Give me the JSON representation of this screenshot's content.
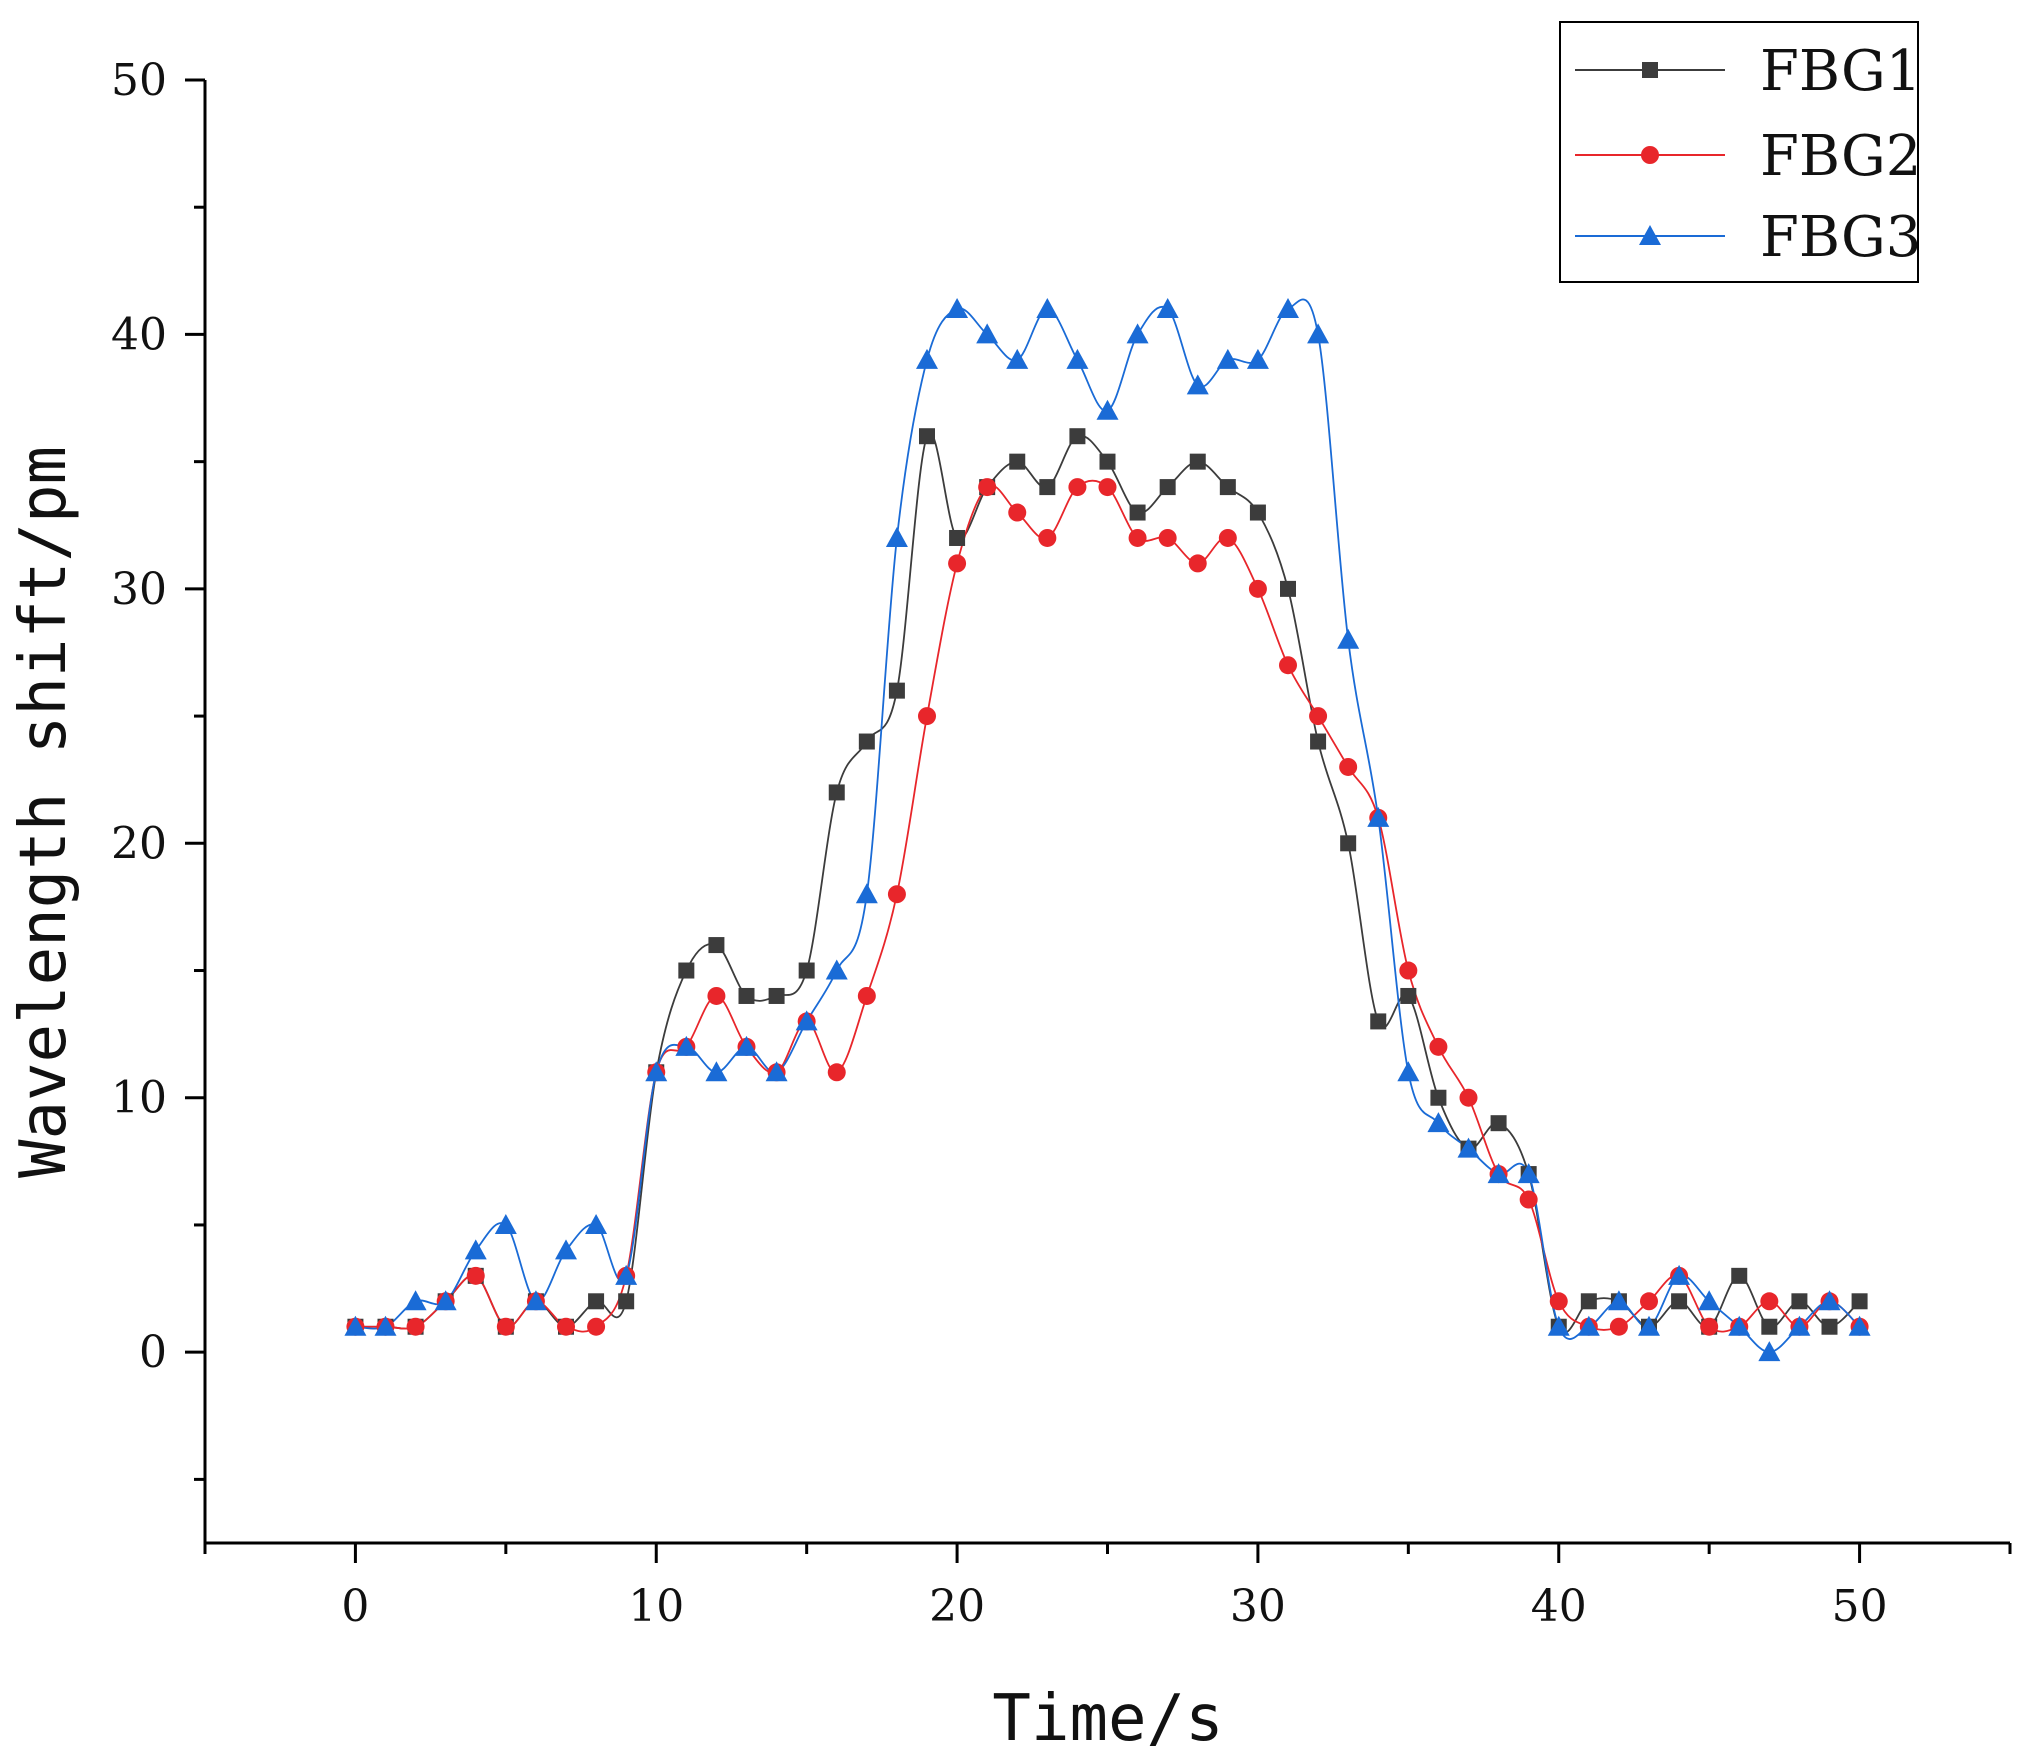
{
  "chart_data": {
    "type": "line",
    "title": "",
    "xlabel": "Time/s",
    "ylabel": "Wavelength shift/pm",
    "xlim": [
      -5,
      55
    ],
    "ylim": [
      -7.5,
      50
    ],
    "xticks": [
      0,
      10,
      20,
      30,
      40,
      50
    ],
    "yticks": [
      0,
      10,
      20,
      30,
      40,
      50
    ],
    "legend_position": "top-right",
    "grid": false,
    "x": [
      0,
      1,
      2,
      3,
      4,
      5,
      6,
      7,
      8,
      9,
      10,
      11,
      12,
      13,
      14,
      15,
      16,
      17,
      18,
      19,
      20,
      21,
      22,
      23,
      24,
      25,
      26,
      27,
      28,
      29,
      30,
      31,
      32,
      33,
      34,
      35,
      36,
      37,
      38,
      39,
      40,
      41,
      42,
      43,
      44,
      45,
      46,
      47,
      48,
      49,
      50
    ],
    "series": [
      {
        "name": "FBG1",
        "color": "#3c3c3c",
        "marker": "square",
        "values": [
          1,
          1,
          1,
          2,
          3,
          1,
          2,
          1,
          2,
          2,
          11,
          15,
          16,
          14,
          14,
          15,
          22,
          24,
          26,
          36,
          32,
          34,
          35,
          34,
          36,
          35,
          33,
          34,
          35,
          34,
          33,
          30,
          24,
          20,
          13,
          14,
          10,
          8,
          9,
          7,
          1,
          2,
          2,
          1,
          2,
          1,
          3,
          1,
          2,
          1,
          2
        ]
      },
      {
        "name": "FBG2",
        "color": "#e8262b",
        "marker": "circle",
        "values": [
          1,
          1,
          1,
          2,
          3,
          1,
          2,
          1,
          1,
          3,
          11,
          12,
          14,
          12,
          11,
          13,
          11,
          14,
          18,
          25,
          31,
          34,
          33,
          32,
          34,
          34,
          32,
          32,
          31,
          32,
          30,
          27,
          25,
          23,
          21,
          15,
          12,
          10,
          7,
          6,
          2,
          1,
          1,
          2,
          3,
          1,
          1,
          2,
          1,
          2,
          1
        ]
      },
      {
        "name": "FBG3",
        "color": "#1a6bd6",
        "marker": "triangle",
        "values": [
          1,
          1,
          2,
          2,
          4,
          5,
          2,
          4,
          5,
          3,
          11,
          12,
          11,
          12,
          11,
          13,
          15,
          18,
          32,
          39,
          41,
          40,
          39,
          41,
          39,
          37,
          40,
          41,
          38,
          39,
          39,
          41,
          40,
          28,
          21,
          11,
          9,
          8,
          7,
          7,
          1,
          1,
          2,
          1,
          3,
          2,
          1,
          0,
          1,
          2,
          1
        ]
      }
    ]
  }
}
